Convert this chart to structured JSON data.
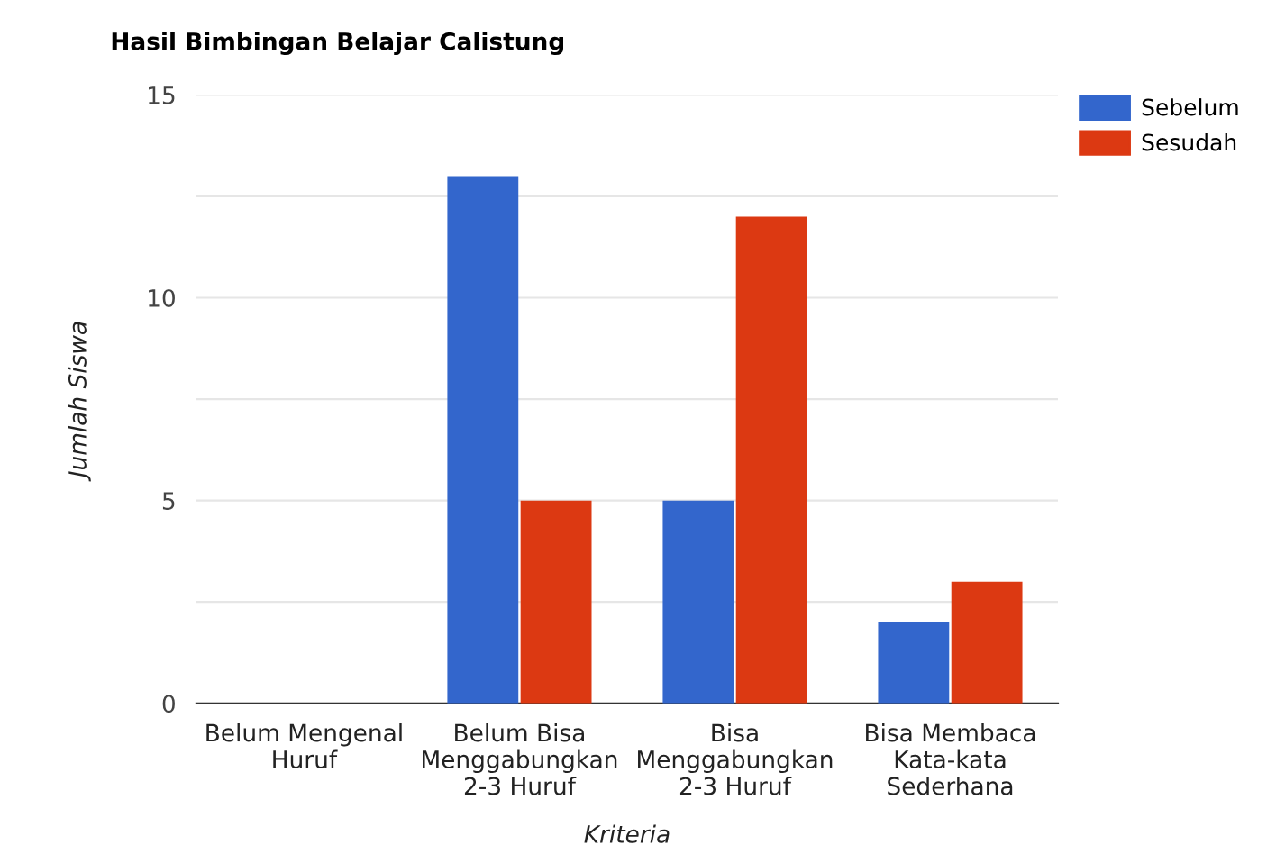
{
  "chart_data": {
    "type": "bar",
    "title": "Hasil Bimbingan Belajar Calistung",
    "xlabel": "Kriteria",
    "ylabel": "Jumlah Siswa",
    "categories": [
      "Belum Mengenal\nHuruf",
      "Belum Bisa\nMenggabungkan\n2-3 Huruf",
      "Bisa\nMenggabungkan\n2-3 Huruf",
      "Bisa Membaca\nKata-kata\nSederhana"
    ],
    "series": [
      {
        "name": "Sebelum",
        "color": "#3366cc",
        "values": [
          0,
          13,
          5,
          2
        ]
      },
      {
        "name": "Sesudah",
        "color": "#dc3912",
        "values": [
          0,
          5,
          12,
          3
        ]
      }
    ],
    "ylim": [
      0,
      15
    ],
    "yticks": [
      0,
      {
        "value": 2.5,
        "label": null
      },
      5,
      {
        "value": 7.5,
        "label": null
      },
      10,
      {
        "value": 12.5,
        "label": null
      },
      15
    ],
    "grid": "y",
    "legend": "top right"
  }
}
